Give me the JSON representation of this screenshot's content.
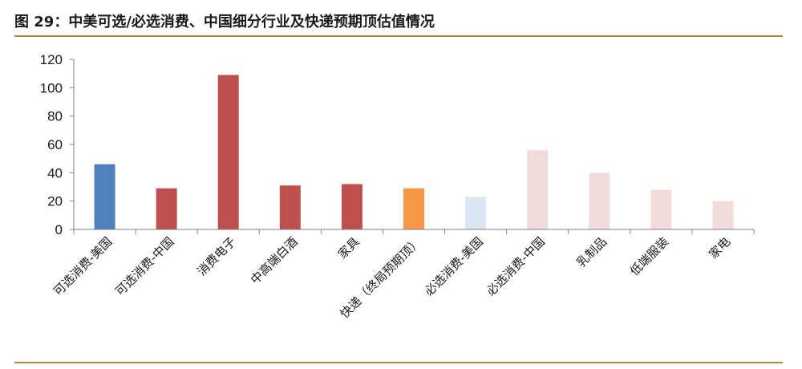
{
  "figure": {
    "title": "图 29：中美可选/必选消费、中国细分行业及快递预期顶估值情况"
  },
  "chart_data": {
    "type": "bar",
    "title": "",
    "xlabel": "",
    "ylabel": "",
    "ylim": [
      0,
      120
    ],
    "yticks": [
      0,
      20,
      40,
      60,
      80,
      100,
      120
    ],
    "grid": false,
    "legend": "none",
    "categories": [
      "可选消费-美国",
      "可选消费-中国",
      "消费电子",
      "中高端白酒",
      "家具",
      "快递（终局预期顶）",
      "必选消费-美国",
      "必选消费-中国",
      "乳制品",
      "低端服装",
      "家电"
    ],
    "values": [
      46,
      29,
      109,
      31,
      32,
      29,
      23,
      56,
      40,
      28,
      20
    ],
    "colors": [
      "#4f81bd",
      "#c0504d",
      "#c0504d",
      "#c0504d",
      "#c0504d",
      "#f79646",
      "#dce6f2",
      "#f2dcdb",
      "#f2dcdb",
      "#f2dcdb",
      "#f2dcdb"
    ],
    "axis_color": "#808080",
    "title_rule_color": "#b08a3e"
  }
}
